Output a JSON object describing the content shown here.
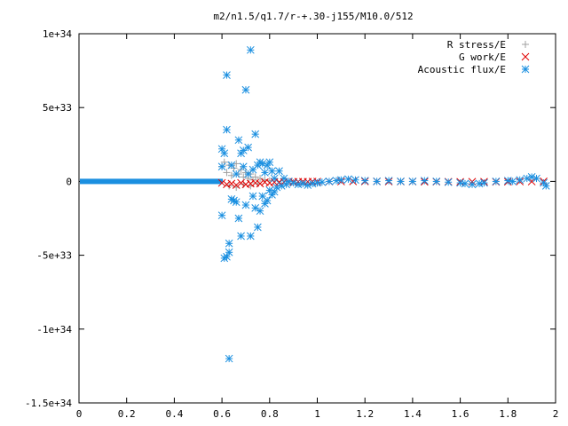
{
  "chart_data": {
    "type": "scatter",
    "title": "m2/n1.5/q1.7/r-+.30-j155/M10.0/512",
    "xlabel": "",
    "ylabel": "",
    "xlim": [
      0,
      2
    ],
    "ylim": [
      -1.5e+34,
      1e+34
    ],
    "grid": false,
    "legend_placement": "top-right",
    "x_ticks": [
      {
        "value": 0,
        "label": "0"
      },
      {
        "value": 0.2,
        "label": "0.2"
      },
      {
        "value": 0.4,
        "label": "0.4"
      },
      {
        "value": 0.6,
        "label": "0.6"
      },
      {
        "value": 0.8,
        "label": "0.8"
      },
      {
        "value": 1.0,
        "label": "1"
      },
      {
        "value": 1.2,
        "label": "1.2"
      },
      {
        "value": 1.4,
        "label": "1.4"
      },
      {
        "value": 1.6,
        "label": "1.6"
      },
      {
        "value": 1.8,
        "label": "1.8"
      },
      {
        "value": 2.0,
        "label": "2"
      }
    ],
    "y_ticks": [
      {
        "value": 1e+34,
        "label": "1e+34"
      },
      {
        "value": 5e+33,
        "label": "5e+33"
      },
      {
        "value": 0,
        "label": "0"
      },
      {
        "value": -5e+33,
        "label": "-5e+33"
      },
      {
        "value": -1e+34,
        "label": "-1e+34"
      },
      {
        "value": -1.5e+34,
        "label": "-1.5e+34"
      }
    ],
    "series": [
      {
        "name": "R stress/E",
        "marker": "plus",
        "color": "#a0a0a0",
        "points": [
          [
            0.6,
            1e+33
          ],
          [
            0.61,
            1.3e+33
          ],
          [
            0.62,
            6e+32
          ],
          [
            0.63,
            1.1e+33
          ],
          [
            0.64,
            4e+32
          ],
          [
            0.65,
            9e+32
          ],
          [
            0.66,
            1.2e+33
          ],
          [
            0.67,
            5e+32
          ],
          [
            0.68,
            8e+32
          ],
          [
            0.69,
            3e+32
          ],
          [
            0.7,
            6e+32
          ],
          [
            0.71,
            2e+32
          ],
          [
            0.72,
            5e+32
          ],
          [
            0.73,
            1e+32
          ],
          [
            0.74,
            3e+32
          ],
          [
            0.76,
            2e+32
          ],
          [
            0.78,
            1e+32
          ],
          [
            0.8,
            5e+31
          ],
          [
            0.63,
            -3e+32
          ],
          [
            0.66,
            -4e+32
          ],
          [
            0.69,
            -2e+32
          ],
          [
            0.72,
            -3e+32
          ],
          [
            0.75,
            -1.5e+32
          ]
        ]
      },
      {
        "name": "G work/E",
        "marker": "cross",
        "color": "#e00000",
        "points": [
          [
            0.6,
            -1e+32
          ],
          [
            0.62,
            -2e+32
          ],
          [
            0.64,
            -1.5e+32
          ],
          [
            0.66,
            -2.5e+32
          ],
          [
            0.68,
            -1e+32
          ],
          [
            0.7,
            -2e+32
          ],
          [
            0.72,
            -1.5e+32
          ],
          [
            0.74,
            -1e+32
          ],
          [
            0.76,
            -1.5e+32
          ],
          [
            0.78,
            -5e+31
          ],
          [
            0.8,
            -1e+32
          ],
          [
            0.82,
            -5e+31
          ],
          [
            0.84,
            -5e+31
          ],
          [
            0.86,
            -4e+31
          ],
          [
            0.88,
            -3e+31
          ],
          [
            0.9,
            -3e+31
          ],
          [
            0.92,
            -2e+31
          ],
          [
            0.94,
            -2e+31
          ],
          [
            0.96,
            -2e+31
          ],
          [
            0.98,
            -1e+31
          ],
          [
            1.0,
            -1e+31
          ],
          [
            1.05,
            -1e+31
          ],
          [
            1.1,
            -1e+31
          ],
          [
            1.15,
            0
          ],
          [
            1.2,
            0
          ],
          [
            1.25,
            0
          ],
          [
            1.3,
            -1e+31
          ],
          [
            1.35,
            -1e+31
          ],
          [
            1.4,
            -1e+31
          ],
          [
            1.45,
            -2e+31
          ],
          [
            1.5,
            -2e+31
          ],
          [
            1.55,
            -2e+31
          ],
          [
            1.6,
            -3e+31
          ],
          [
            1.65,
            -2e+31
          ],
          [
            1.7,
            -2e+31
          ],
          [
            1.75,
            -3e+31
          ],
          [
            1.8,
            -2e+31
          ],
          [
            1.85,
            -1e+31
          ],
          [
            1.9,
            -1e+31
          ],
          [
            1.95,
            0
          ]
        ]
      },
      {
        "name": "Acoustic flux/E",
        "marker": "star",
        "color": "#1a8fe0",
        "points": [
          [
            0.6,
            2.2e+33
          ],
          [
            0.61,
            1.9e+33
          ],
          [
            0.6,
            1e+33
          ],
          [
            0.6,
            -2.3e+33
          ],
          [
            0.61,
            -5.2e+33
          ],
          [
            0.62,
            -5.1e+33
          ],
          [
            0.62,
            3.5e+33
          ],
          [
            0.62,
            7.2e+33
          ],
          [
            0.63,
            -4.8e+33
          ],
          [
            0.63,
            -4.2e+33
          ],
          [
            0.63,
            -1.2e+34
          ],
          [
            0.64,
            -1.2e+33
          ],
          [
            0.64,
            1.1e+33
          ],
          [
            0.65,
            -1.3e+33
          ],
          [
            0.66,
            -1.4e+33
          ],
          [
            0.66,
            5e+32
          ],
          [
            0.67,
            2.8e+33
          ],
          [
            0.67,
            -2.5e+33
          ],
          [
            0.68,
            1.9e+33
          ],
          [
            0.68,
            -3.7e+33
          ],
          [
            0.69,
            2.1e+33
          ],
          [
            0.69,
            1e+33
          ],
          [
            0.7,
            6.2e+33
          ],
          [
            0.7,
            -1.6e+33
          ],
          [
            0.71,
            2.3e+33
          ],
          [
            0.71,
            5e+32
          ],
          [
            0.72,
            8.9e+33
          ],
          [
            0.72,
            -3.7e+33
          ],
          [
            0.73,
            -1e+33
          ],
          [
            0.73,
            8e+32
          ],
          [
            0.74,
            3.2e+33
          ],
          [
            0.74,
            -1.8e+33
          ],
          [
            0.75,
            1.1e+33
          ],
          [
            0.75,
            -3.1e+33
          ],
          [
            0.76,
            -2e+33
          ],
          [
            0.76,
            1.3e+33
          ],
          [
            0.77,
            1.2e+33
          ],
          [
            0.77,
            -1e+33
          ],
          [
            0.78,
            -1.5e+33
          ],
          [
            0.78,
            6e+32
          ],
          [
            0.79,
            1.1e+33
          ],
          [
            0.79,
            -1.3e+33
          ],
          [
            0.8,
            1.3e+33
          ],
          [
            0.8,
            -6e+32
          ],
          [
            0.81,
            7e+32
          ],
          [
            0.81,
            -9e+32
          ],
          [
            0.82,
            -7e+32
          ],
          [
            0.82,
            2e+32
          ],
          [
            0.83,
            -4e+32
          ],
          [
            0.84,
            7e+32
          ],
          [
            0.85,
            -3e+32
          ],
          [
            0.86,
            2e+32
          ],
          [
            0.87,
            -2e+32
          ],
          [
            0.88,
            0
          ],
          [
            0.9,
            -1e+32
          ],
          [
            0.92,
            -2e+32
          ],
          [
            0.94,
            -1.5e+32
          ],
          [
            0.96,
            -2.5e+32
          ],
          [
            0.98,
            -1.5e+32
          ],
          [
            1.0,
            -1e+32
          ],
          [
            1.02,
            -5e+31
          ],
          [
            1.05,
            0
          ],
          [
            1.08,
            5e+31
          ],
          [
            1.1,
            1e+32
          ],
          [
            1.13,
            1.5e+32
          ],
          [
            1.16,
            1e+32
          ],
          [
            1.2,
            5e+31
          ],
          [
            1.25,
            0
          ],
          [
            1.3,
            5e+31
          ],
          [
            1.35,
            0
          ],
          [
            1.4,
            0
          ],
          [
            1.45,
            5e+31
          ],
          [
            1.5,
            0
          ],
          [
            1.55,
            -5e+31
          ],
          [
            1.6,
            -1e+32
          ],
          [
            1.62,
            -1.5e+32
          ],
          [
            1.65,
            -2e+32
          ],
          [
            1.68,
            -1.5e+32
          ],
          [
            1.7,
            -1e+32
          ],
          [
            1.75,
            0
          ],
          [
            1.8,
            5e+31
          ],
          [
            1.82,
            0
          ],
          [
            1.85,
            1e+32
          ],
          [
            1.88,
            2e+32
          ],
          [
            1.9,
            3e+32
          ],
          [
            1.92,
            2e+32
          ],
          [
            1.95,
            -1e+32
          ],
          [
            1.96,
            -3e+32
          ]
        ]
      }
    ]
  }
}
